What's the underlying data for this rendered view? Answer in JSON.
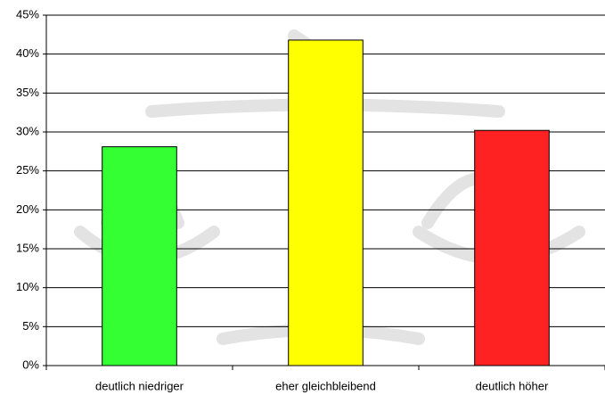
{
  "chart_data": {
    "type": "bar",
    "categories": [
      "deutlich niedriger",
      "eher gleichbleibend",
      "deutlich höher"
    ],
    "values": [
      28.1,
      41.8,
      30.2
    ],
    "colors": [
      "#33ff33",
      "#ffff00",
      "#ff2222"
    ],
    "ylim": [
      0,
      45
    ],
    "yticks": [
      {
        "value": 0,
        "label": "0%"
      },
      {
        "value": 5,
        "label": "5%"
      },
      {
        "value": 10,
        "label": "10%"
      },
      {
        "value": 15,
        "label": "15%"
      },
      {
        "value": 20,
        "label": "20%"
      },
      {
        "value": 25,
        "label": "25%"
      },
      {
        "value": 30,
        "label": "30%"
      },
      {
        "value": 35,
        "label": "35%"
      },
      {
        "value": 40,
        "label": "40%"
      },
      {
        "value": 45,
        "label": "45%"
      }
    ],
    "grid": true
  }
}
